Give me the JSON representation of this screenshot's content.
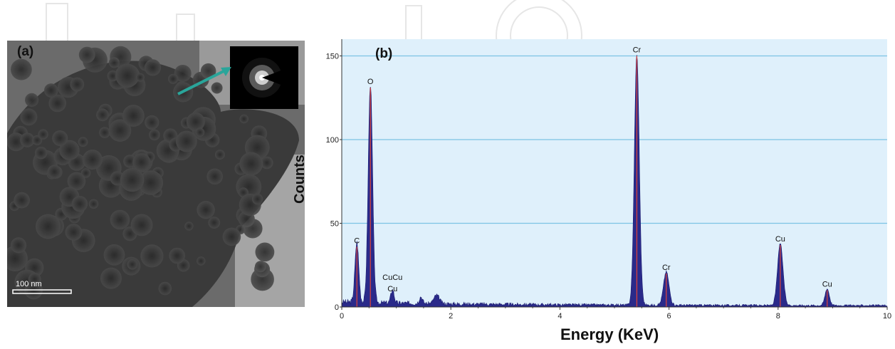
{
  "panel_a": {
    "label": "(a)",
    "scale_bar_label": "100 nm"
  },
  "panel_b": {
    "label": "(b)"
  },
  "chart_data": {
    "type": "line",
    "title": "",
    "xlabel": "Energy (KeV)",
    "ylabel": "Counts",
    "xlim": [
      0,
      10
    ],
    "ylim": [
      0,
      160
    ],
    "x_ticks": [
      0,
      2,
      4,
      6,
      8,
      10
    ],
    "y_ticks": [
      0,
      50,
      100,
      150
    ],
    "grid": "horizontal",
    "colors": {
      "background": "#dff0fb",
      "fill": "#2a2a8a",
      "peak_line": "#e0443a",
      "grid": "#7cc4e4"
    },
    "peaks": [
      {
        "label": "C",
        "x": 0.277,
        "y": 36
      },
      {
        "label": "O",
        "x": 0.525,
        "y": 131
      },
      {
        "label": "CuCu",
        "x": 0.93,
        "y": 8
      },
      {
        "label": "Cu",
        "x": 0.93,
        "y": 5
      },
      {
        "label": "Cr",
        "x": 5.41,
        "y": 150
      },
      {
        "label": "Cr",
        "x": 5.95,
        "y": 20
      },
      {
        "label": "Cu",
        "x": 8.04,
        "y": 37
      },
      {
        "label": "Cu",
        "x": 8.9,
        "y": 10
      }
    ]
  }
}
